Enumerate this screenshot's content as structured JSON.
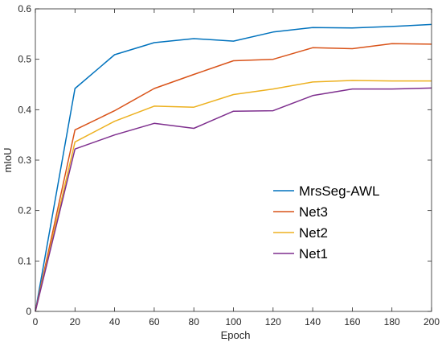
{
  "chart_data": {
    "type": "line",
    "title": "",
    "xlabel": "Epoch",
    "ylabel": "mIoU",
    "xlim": [
      0,
      200
    ],
    "ylim": [
      0,
      0.6
    ],
    "xticks": [
      "0",
      "20",
      "40",
      "60",
      "80",
      "100",
      "120",
      "140",
      "160",
      "180",
      "200"
    ],
    "yticks": [
      "0",
      "0.1",
      "0.2",
      "0.3",
      "0.4",
      "0.5",
      "0.6"
    ],
    "grid": false,
    "legend_position": "right-center",
    "x": [
      0,
      20,
      40,
      60,
      80,
      100,
      120,
      140,
      160,
      180,
      200
    ],
    "series": [
      {
        "name": "MrsSeg-AWL",
        "color": "#0072BD",
        "values": [
          0,
          0.442,
          0.509,
          0.533,
          0.541,
          0.536,
          0.554,
          0.563,
          0.562,
          0.565,
          0.569
        ]
      },
      {
        "name": "Net3",
        "color": "#D95319",
        "values": [
          0,
          0.36,
          0.398,
          0.442,
          0.47,
          0.497,
          0.5,
          0.523,
          0.521,
          0.531,
          0.53
        ]
      },
      {
        "name": "Net2",
        "color": "#EDB120",
        "values": [
          0,
          0.336,
          0.377,
          0.407,
          0.405,
          0.43,
          0.441,
          0.455,
          0.458,
          0.457,
          0.457
        ]
      },
      {
        "name": "Net1",
        "color": "#7E2F8E",
        "values": [
          0,
          0.322,
          0.35,
          0.373,
          0.363,
          0.397,
          0.398,
          0.428,
          0.441,
          0.441,
          0.443
        ]
      }
    ]
  }
}
